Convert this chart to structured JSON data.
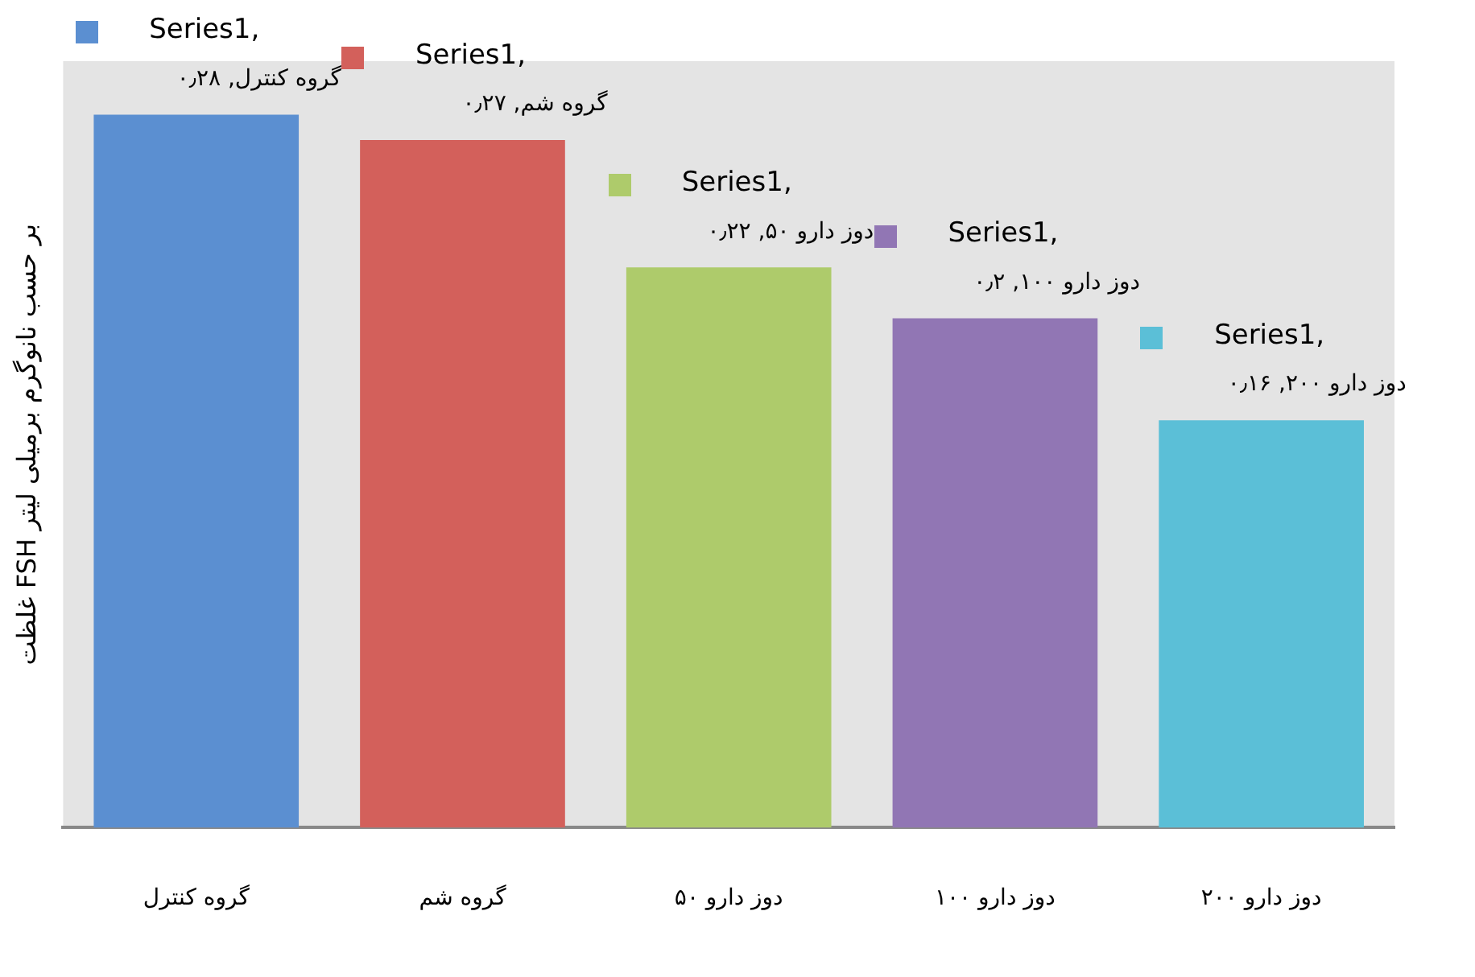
{
  "chart_data": {
    "type": "bar",
    "ylabel": "غلظت FSH بر حسب نانوگرم برمیلی لیتر",
    "categories": [
      "گروه کنترل",
      "گروه شم",
      "دوز دارو ۵۰",
      "دوز دارو ۱۰۰",
      "دوز دارو ۲۰۰"
    ],
    "values": [
      0.28,
      0.27,
      0.22,
      0.2,
      0.16
    ],
    "colors": [
      "#5b8fd1",
      "#d3605b",
      "#aecb6b",
      "#9176b4",
      "#5bbfd7"
    ],
    "value_labels": [
      "Series1, گروه کنترل, ۰٫۲۸",
      "Series1, گروه شم, ۰٫۲۷",
      "Series1, دوز دارو ۵۰, ۰٫۲۲",
      "Series1, دوز دارو ۱۰۰, ۰٫۲",
      "Series1, دوز دارو ۲۰۰, ۰٫۱۶"
    ],
    "grid": false,
    "legend": false
  }
}
